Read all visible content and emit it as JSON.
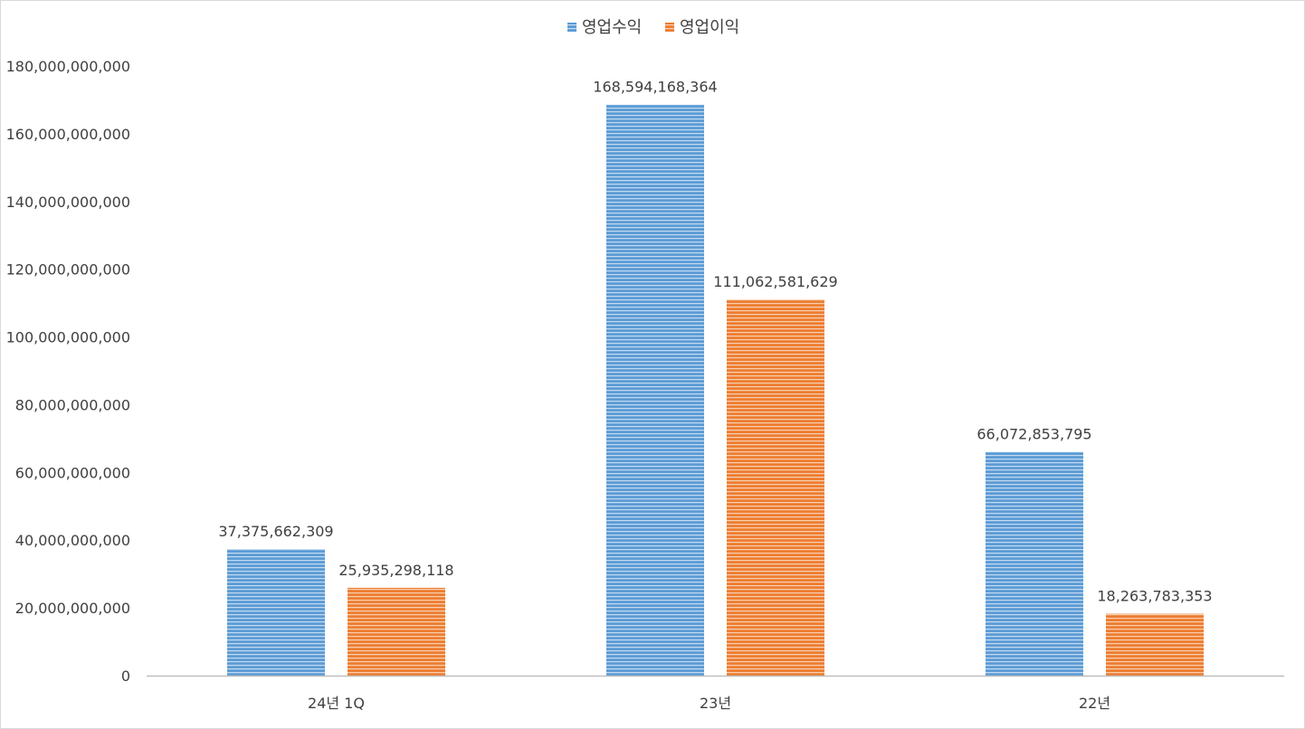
{
  "chart_data": {
    "type": "bar",
    "categories": [
      "24년 1Q",
      "23년",
      "22년"
    ],
    "series": [
      {
        "name": "영업수익",
        "color": "#5b9bd5",
        "values": [
          37375662309,
          168594168364,
          66072853795
        ],
        "labels": [
          "37,375,662,309",
          "168,594,168,364",
          "66,072,853,795"
        ]
      },
      {
        "name": "영업이익",
        "color": "#ed7d31",
        "values": [
          25935298118,
          111062581629,
          18263783353
        ],
        "labels": [
          "25,935,298,118",
          "111,062,581,629",
          "18,263,783,353"
        ]
      }
    ],
    "ylim": [
      0,
      180000000000
    ],
    "yticks": [
      0,
      20000000000,
      40000000000,
      60000000000,
      80000000000,
      100000000000,
      120000000000,
      140000000000,
      160000000000,
      180000000000
    ],
    "ytick_labels": [
      "0",
      "20,000,000,000",
      "40,000,000,000",
      "60,000,000,000",
      "80,000,000,000",
      "100,000,000,000",
      "120,000,000,000",
      "140,000,000,000",
      "160,000,000,000",
      "180,000,000,000"
    ],
    "grid": false,
    "legend_position": "top-center",
    "title": "",
    "xlabel": "",
    "ylabel": ""
  }
}
